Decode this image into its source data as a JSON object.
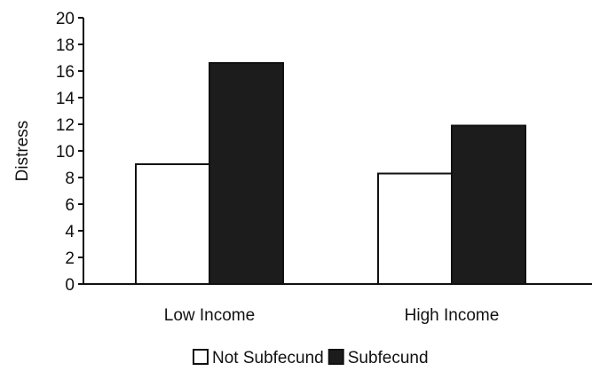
{
  "chart_data": {
    "type": "bar",
    "title": "",
    "xlabel": "",
    "ylabel": "Distress",
    "ylim": [
      0,
      20
    ],
    "yticks": [
      0,
      2,
      4,
      6,
      8,
      10,
      12,
      14,
      16,
      18,
      20
    ],
    "categories": [
      "Low Income",
      "High Income"
    ],
    "series": [
      {
        "name": "Not Subfecund",
        "values": [
          9.0,
          8.3
        ],
        "color": "#ffffff"
      },
      {
        "name": "Subfecund",
        "values": [
          16.6,
          11.9
        ],
        "color": "#1c1c1c"
      }
    ],
    "grid": false,
    "legend_position": "bottom"
  }
}
